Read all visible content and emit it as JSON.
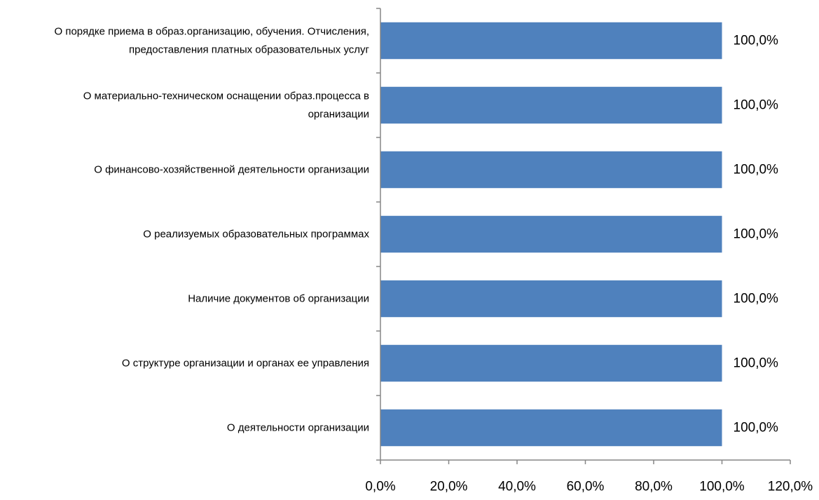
{
  "chart_data": {
    "type": "bar",
    "orientation": "horizontal",
    "categories": [
      [
        "О порядке приема в образ.организацию, обучения.  Отчисления,",
        "предоставления платных образовательных услуг"
      ],
      [
        "О материально-техническом оснащении образ.процесса в",
        "организации"
      ],
      [
        "О финансово-хозяйственной деятельности организации"
      ],
      [
        "О реализуемых образовательных программах"
      ],
      [
        "Наличие документов об организации"
      ],
      [
        "О структуре организации и органах ее управления"
      ],
      [
        "О деятельности организации"
      ]
    ],
    "values": [
      100,
      100,
      100,
      100,
      100,
      100,
      100
    ],
    "data_labels": [
      "100,0%",
      "100,0%",
      "100,0%",
      "100,0%",
      "100,0%",
      "100,0%",
      "100,0%"
    ],
    "xlim": [
      0,
      120
    ],
    "x_ticks": [
      0,
      20,
      40,
      60,
      80,
      100,
      120
    ],
    "x_tick_labels": [
      "0,0%",
      "20,0%",
      "40,0%",
      "60,0%",
      "80,0%",
      "100,0%",
      "120,0%"
    ],
    "grid": false,
    "legend": "none",
    "bar_color": "#4F81BD",
    "axis_color": "#868686"
  }
}
